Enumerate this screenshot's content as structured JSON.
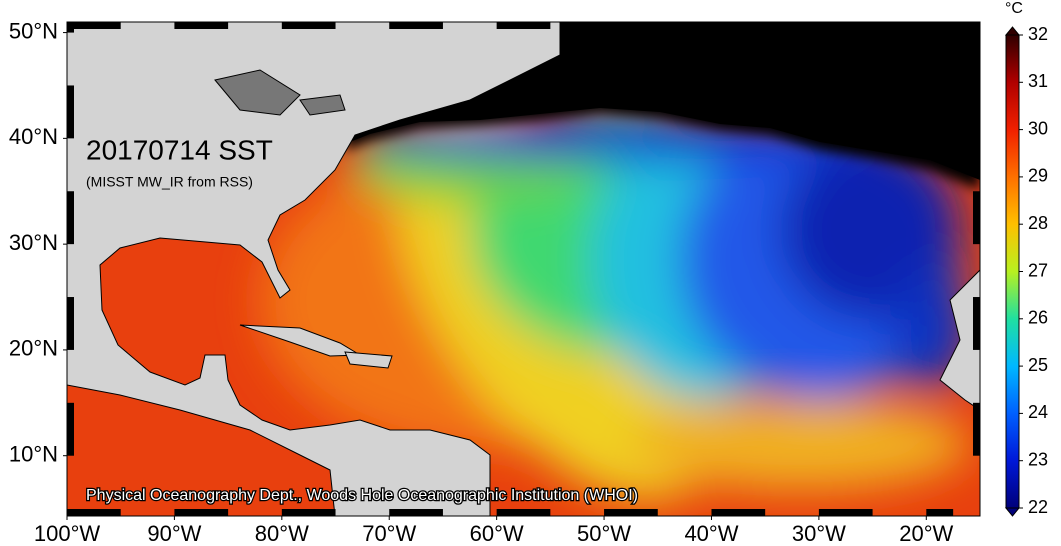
{
  "map": {
    "title": "20170714 SST",
    "subtitle": "(MISST MW_IR from RSS)",
    "credit": "Physical Oceanography Dept., Woods Hole Oceanographic Institution (WHOI)",
    "lon_range": [
      -100,
      -15
    ],
    "lat_range": [
      4.3,
      51
    ],
    "lon_ticks": [
      {
        "value": -100,
        "label": "100°W"
      },
      {
        "value": -90,
        "label": "90°W"
      },
      {
        "value": -80,
        "label": "80°W"
      },
      {
        "value": -70,
        "label": "70°W"
      },
      {
        "value": -60,
        "label": "60°W"
      },
      {
        "value": -50,
        "label": "50°W"
      },
      {
        "value": -40,
        "label": "40°W"
      },
      {
        "value": -30,
        "label": "30°W"
      },
      {
        "value": -20,
        "label": "20°W"
      }
    ],
    "lat_ticks": [
      {
        "value": 10,
        "label": "10°N"
      },
      {
        "value": 20,
        "label": "20°N"
      },
      {
        "value": 30,
        "label": "30°N"
      },
      {
        "value": 40,
        "label": "40°N"
      },
      {
        "value": 50,
        "label": "50°N"
      }
    ],
    "colorbar": {
      "unit": "°C",
      "range": [
        22,
        32
      ],
      "ticks": [
        22,
        23,
        24,
        25,
        26,
        27,
        28,
        29,
        30,
        31,
        32
      ],
      "colors": [
        "#00007a",
        "#0018d8",
        "#0060ff",
        "#00b8ff",
        "#20e0a0",
        "#b8f020",
        "#ffc000",
        "#ff7000",
        "#f02000",
        "#b00000",
        "#300000"
      ]
    }
  }
}
